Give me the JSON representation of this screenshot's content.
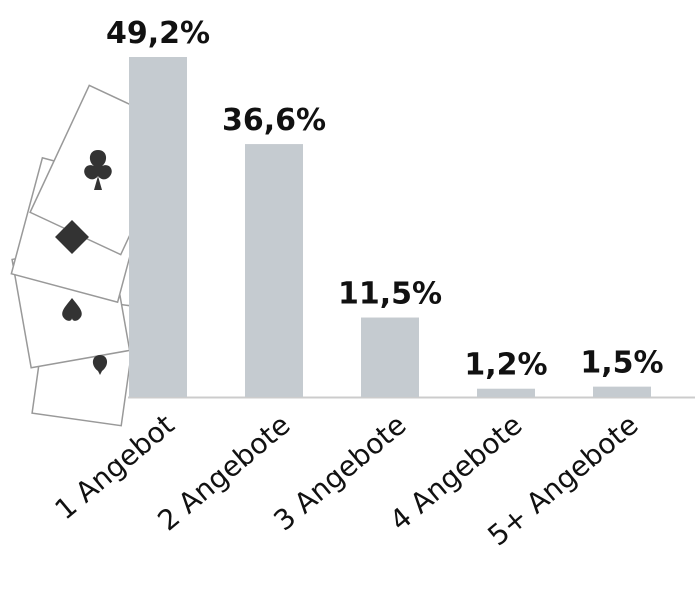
{
  "chart_data": {
    "type": "bar",
    "categories": [
      "1 Angebot",
      "2 Angebote",
      "3 Angebote",
      "4 Angebote",
      "5+ Angebote"
    ],
    "values": [
      49.2,
      36.6,
      11.5,
      1.2,
      1.5
    ],
    "value_labels": [
      "49,2%",
      "36,6%",
      "11,5%",
      "1,2%",
      "1,5%"
    ],
    "color": "#c5cbd0"
  }
}
